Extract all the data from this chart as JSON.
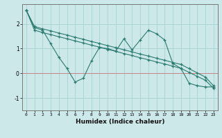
{
  "xlabel": "Humidex (Indice chaleur)",
  "bg_color": "#cce8e8",
  "grid_color": "#aad4d4",
  "line_color": "#2a7a70",
  "hline_color": "#cc7777",
  "xlim": [
    -0.5,
    23.5
  ],
  "ylim": [
    -1.5,
    2.8
  ],
  "xticks": [
    0,
    1,
    2,
    3,
    4,
    5,
    6,
    7,
    8,
    9,
    10,
    11,
    12,
    13,
    14,
    15,
    16,
    17,
    18,
    19,
    20,
    21,
    22,
    23
  ],
  "yticks": [
    -1,
    0,
    1,
    2
  ],
  "zigzag_x": [
    0,
    1,
    2,
    3,
    4,
    5,
    6,
    7,
    8,
    9,
    10,
    11,
    12,
    13,
    14,
    15,
    16,
    17,
    18,
    19,
    20,
    21,
    22,
    23
  ],
  "zigzag_y": [
    2.55,
    1.85,
    1.75,
    1.2,
    0.65,
    0.2,
    -0.35,
    -0.2,
    0.5,
    1.05,
    1.0,
    0.9,
    1.4,
    0.95,
    1.35,
    1.75,
    1.6,
    1.35,
    0.4,
    0.2,
    -0.4,
    -0.5,
    -0.55,
    -0.55
  ],
  "upper_x": [
    0,
    1,
    2,
    3,
    4,
    5,
    6,
    7,
    8,
    9,
    10,
    11,
    12,
    13,
    14,
    15,
    16,
    17,
    18,
    19,
    20,
    21,
    22,
    23
  ],
  "upper_y": [
    2.55,
    1.9,
    1.8,
    1.72,
    1.63,
    1.55,
    1.46,
    1.38,
    1.29,
    1.21,
    1.12,
    1.04,
    0.95,
    0.87,
    0.78,
    0.7,
    0.61,
    0.53,
    0.44,
    0.36,
    0.19,
    0.02,
    -0.15,
    -0.5
  ],
  "lower_x": [
    0,
    1,
    2,
    3,
    4,
    5,
    6,
    7,
    8,
    9,
    10,
    11,
    12,
    13,
    14,
    15,
    16,
    17,
    18,
    19,
    20,
    21,
    22,
    23
  ],
  "lower_y": [
    2.55,
    1.75,
    1.65,
    1.57,
    1.48,
    1.4,
    1.31,
    1.23,
    1.14,
    1.06,
    0.97,
    0.89,
    0.8,
    0.72,
    0.63,
    0.55,
    0.46,
    0.38,
    0.29,
    0.2,
    0.04,
    -0.12,
    -0.28,
    -0.6
  ]
}
